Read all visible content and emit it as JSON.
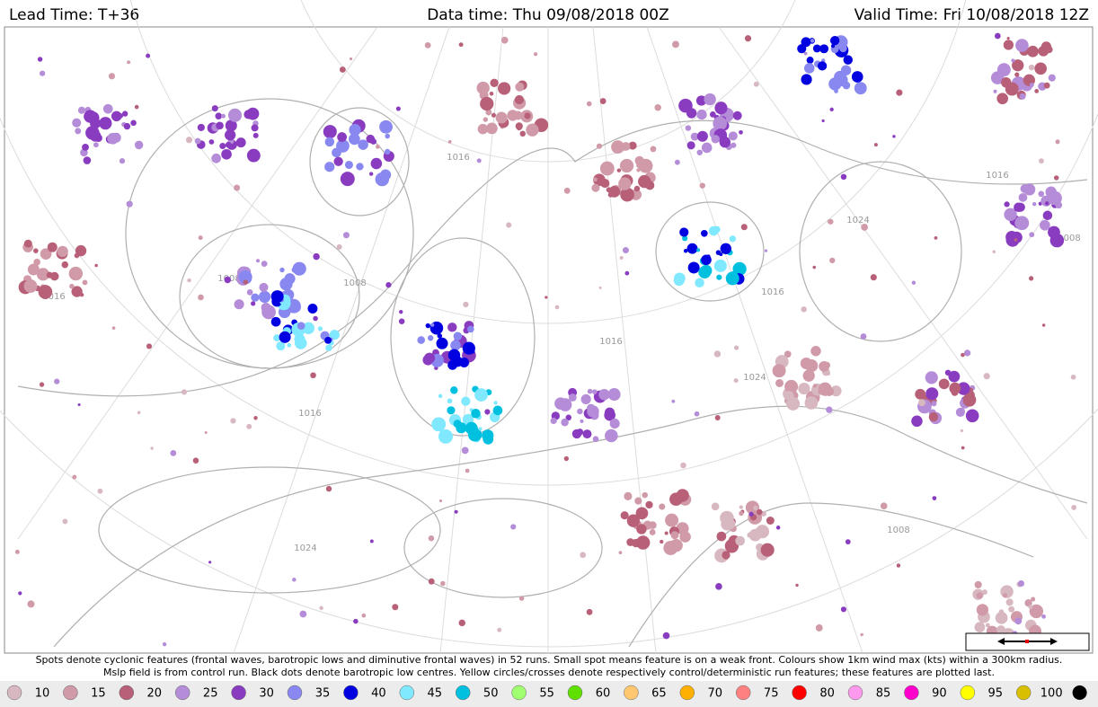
{
  "header": {
    "lead_time": "Lead Time: T+36",
    "data_time": "Data time:  Thu 09/08/2018 00Z",
    "valid_time": "Valid Time: Fri 10/08/2018 12Z"
  },
  "map": {
    "isobar_labels": [
      "1016",
      "1008",
      "1008",
      "1016",
      "1024",
      "1016",
      "1024",
      "1016",
      "1008",
      "1016",
      "1024",
      "1016",
      "1008"
    ]
  },
  "caption": [
    "Spots denote cyclonic features (frontal waves, barotropic lows and diminutive frontal waves) in 52 runs. Small spot means feature is on a weak front. Colours show 1km wind max (kts) within a 300km radius.",
    "Mslp field is from control run. Black dots denote barotropic low centres. Yellow circles/crosses denote respectively control/deterministic run features; these features are plotted last."
  ],
  "legend": {
    "items": [
      {
        "label": "10",
        "color": "#d8b8c0"
      },
      {
        "label": "15",
        "color": "#d09aa8"
      },
      {
        "label": "20",
        "color": "#b86078"
      },
      {
        "label": "25",
        "color": "#b48cd8"
      },
      {
        "label": "30",
        "color": "#8a3cc0"
      },
      {
        "label": "35",
        "color": "#8888f0"
      },
      {
        "label": "40",
        "color": "#0000e0"
      },
      {
        "label": "45",
        "color": "#80e8ff"
      },
      {
        "label": "50",
        "color": "#00c0e0"
      },
      {
        "label": "55",
        "color": "#a0ff70"
      },
      {
        "label": "60",
        "color": "#60e000"
      },
      {
        "label": "65",
        "color": "#ffc870"
      },
      {
        "label": "70",
        "color": "#ffb000"
      },
      {
        "label": "75",
        "color": "#ff8080"
      },
      {
        "label": "80",
        "color": "#ff0000"
      },
      {
        "label": "85",
        "color": "#ff99ee"
      },
      {
        "label": "90",
        "color": "#ff00cc"
      },
      {
        "label": "95",
        "color": "#ffff00"
      },
      {
        "label": "100",
        "color": "#d8c000"
      }
    ],
    "end_marker_color": "#000000"
  }
}
